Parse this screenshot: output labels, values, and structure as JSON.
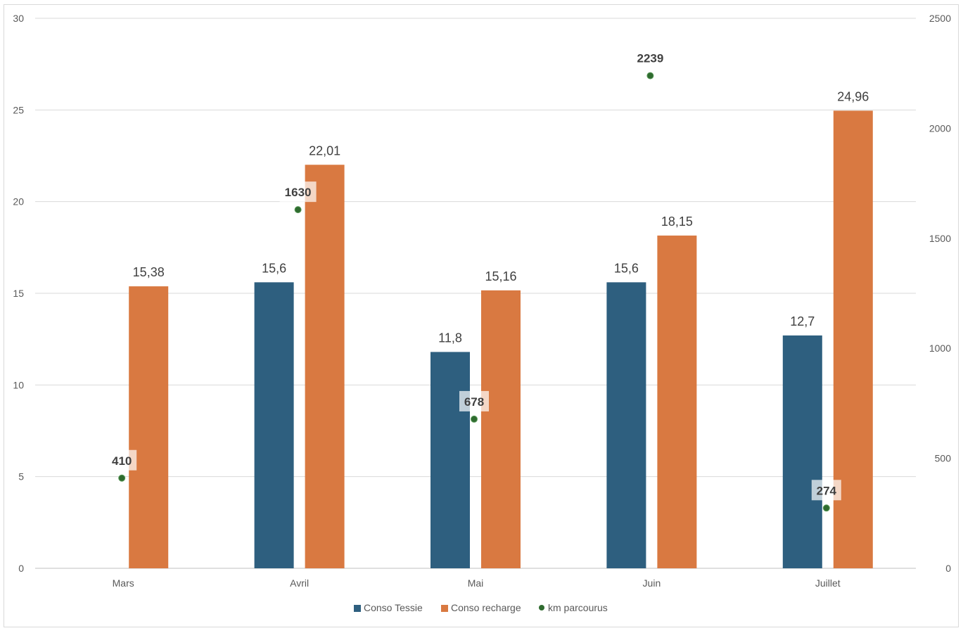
{
  "chart_data": {
    "type": "bar",
    "categories": [
      "Mars",
      "Avril",
      "Mai",
      "Juin",
      "Juillet"
    ],
    "series": [
      {
        "name": "Conso Tessie",
        "kind": "bar",
        "axis": "left",
        "color": "#2e5f7f",
        "values": [
          null,
          15.6,
          11.8,
          15.6,
          12.7
        ],
        "labels": [
          "",
          "15,6",
          "11,8",
          "15,6",
          "12,7"
        ]
      },
      {
        "name": "Conso recharge",
        "kind": "bar",
        "axis": "left",
        "color": "#d97941",
        "values": [
          15.38,
          22.01,
          15.16,
          18.15,
          24.96
        ],
        "labels": [
          "15,38",
          "22,01",
          "15,16",
          "18,15",
          "24,96"
        ]
      },
      {
        "name": "km parcourus",
        "kind": "scatter",
        "axis": "right",
        "color": "#2f6b2f",
        "values": [
          410,
          1630,
          678,
          2239,
          274
        ],
        "labels": [
          "410",
          "1630",
          "678",
          "2239",
          "274"
        ]
      }
    ],
    "y_left": {
      "min": 0,
      "max": 30,
      "ticks": [
        "0",
        "5",
        "10",
        "15",
        "20",
        "25",
        "30"
      ],
      "values": [
        0,
        5,
        10,
        15,
        20,
        25,
        30
      ]
    },
    "y_right": {
      "min": 0,
      "max": 2500,
      "ticks": [
        "0",
        "500",
        "1000",
        "1500",
        "2000",
        "2500"
      ],
      "values": [
        0,
        500,
        1000,
        1500,
        2000,
        2500
      ]
    },
    "grid": true,
    "legend_position": "bottom"
  }
}
